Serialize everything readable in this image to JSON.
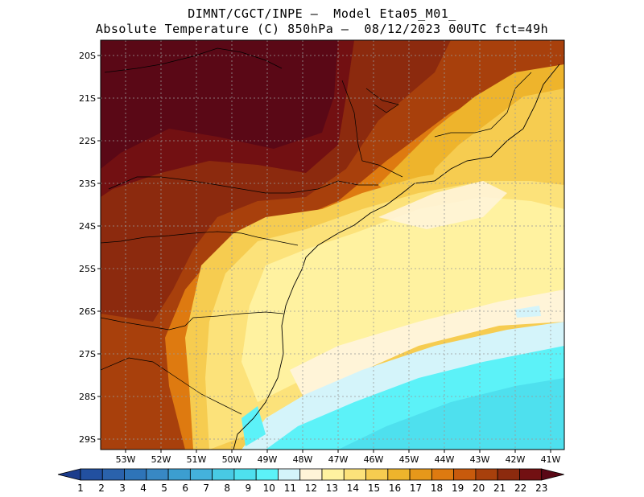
{
  "title": {
    "line1": "DIMNT/CGCT/INPE —  Model Eta05_M01_",
    "line2": "Absolute Temperature (C) 850hPa —  08/12/2023 00UTC fct=49h"
  },
  "map": {
    "lat_labels": [
      "20S",
      "21S",
      "22S",
      "23S",
      "24S",
      "25S",
      "26S",
      "27S",
      "28S",
      "29S"
    ],
    "lon_labels": [
      "53W",
      "52W",
      "51W",
      "50W",
      "49W",
      "48W",
      "47W",
      "46W",
      "45W",
      "44W",
      "43W",
      "42W",
      "41W"
    ],
    "lat_range": [
      -29.4,
      -19.8
    ],
    "lon_range": [
      -53.8,
      -40.7
    ]
  },
  "colorbar": {
    "labels": [
      "1",
      "2",
      "3",
      "4",
      "5",
      "6",
      "7",
      "8",
      "9",
      "10",
      "11",
      "12",
      "13",
      "14",
      "15",
      "16",
      "17",
      "18",
      "19",
      "20",
      "21",
      "22",
      "23"
    ],
    "colors": [
      "#1c3c8c",
      "#2250a0",
      "#2a62ac",
      "#2e74b8",
      "#3888c4",
      "#3c9ed0",
      "#44b2dc",
      "#48cae4",
      "#4ee0ee",
      "#5cf2f8",
      "#d4f4fa",
      "#fff4d8",
      "#fff2a0",
      "#fce27a",
      "#f6cc50",
      "#eeb42c",
      "#e6981a",
      "#de7a10",
      "#c85a0c",
      "#a8400c",
      "#8c2a0e",
      "#721012",
      "#5a0816"
    ]
  }
}
